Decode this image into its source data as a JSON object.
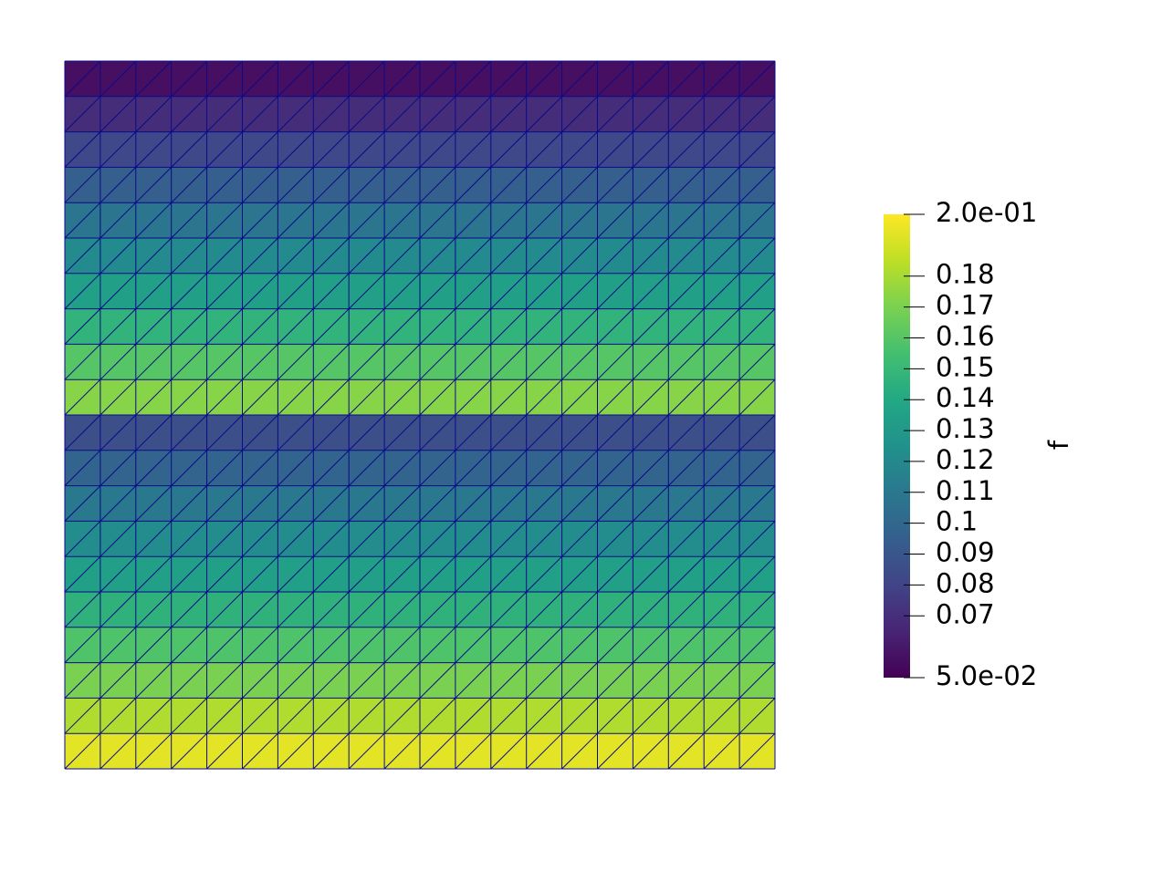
{
  "chart_data": {
    "type": "mesh",
    "values": [
      0.056,
      0.069,
      0.082,
      0.095,
      0.108,
      0.121,
      0.134,
      0.147,
      0.16,
      0.173,
      0.086,
      0.098,
      0.11,
      0.122,
      0.134,
      0.146,
      0.158,
      0.17,
      0.182,
      0.194
    ],
    "colorbar_label": "f",
    "clim": [
      0.05,
      0.2
    ],
    "cticks": [
      {
        "value": 0.2,
        "label": "2.0e-01"
      },
      0.18,
      0.17,
      0.16,
      0.15,
      0.14,
      0.13,
      0.12,
      0.11,
      0.1,
      0.09,
      0.08,
      0.07,
      {
        "value": 0.05,
        "label": "5.0e-02"
      }
    ],
    "colormap": "viridis",
    "edge_color": "#0a0a8a"
  }
}
